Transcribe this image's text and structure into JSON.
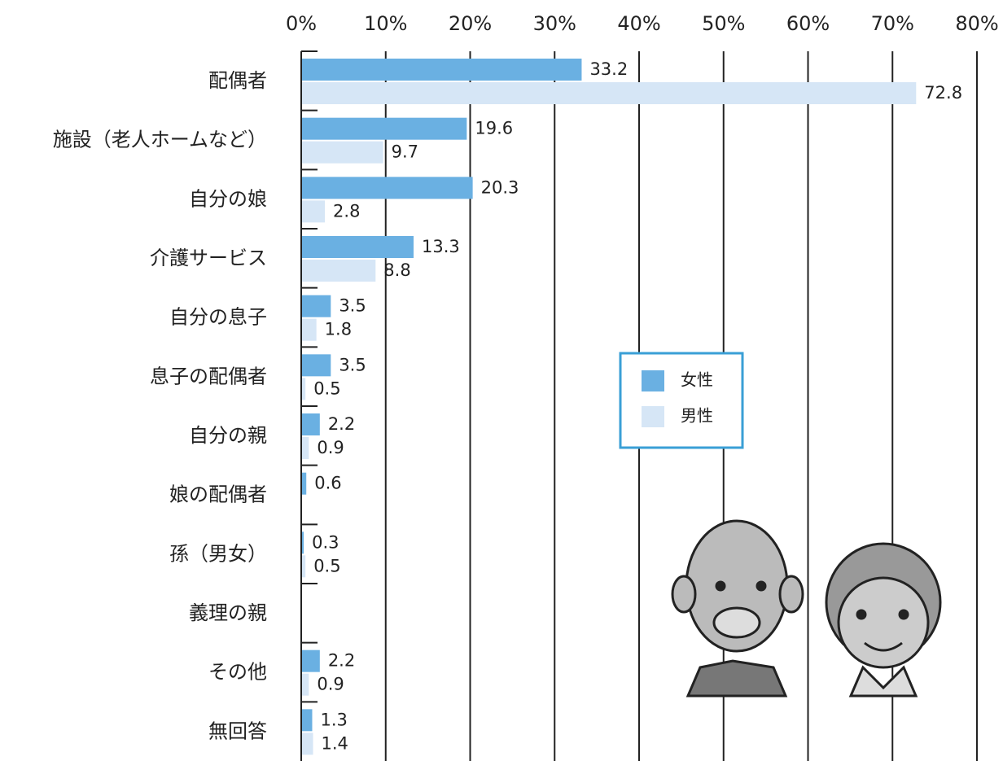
{
  "chart_data": {
    "type": "bar",
    "orientation": "horizontal",
    "categories": [
      "配偶者",
      "施設（老人ホームなど）",
      "自分の娘",
      "介護サービス",
      "自分の息子",
      "息子の配偶者",
      "自分の親",
      "娘の配偶者",
      "孫（男女）",
      "義理の親",
      "その他",
      "無回答"
    ],
    "series": [
      {
        "name": "女性",
        "color": "#6ab0e2",
        "values": [
          33.2,
          19.6,
          20.3,
          13.3,
          3.5,
          3.5,
          2.2,
          0.6,
          0.3,
          null,
          2.2,
          1.3
        ]
      },
      {
        "name": "男性",
        "color": "#d6e6f6",
        "values": [
          72.8,
          9.7,
          2.8,
          8.8,
          1.8,
          0.5,
          0.9,
          null,
          0.5,
          null,
          0.9,
          1.4
        ]
      }
    ],
    "xlim": [
      0,
      80
    ],
    "xticks": [
      {
        "value": 0,
        "label": "0%"
      },
      {
        "value": 10,
        "label": "10%"
      },
      {
        "value": 20,
        "label": "20%"
      },
      {
        "value": 30,
        "label": "30%"
      },
      {
        "value": 40,
        "label": "40%"
      },
      {
        "value": 50,
        "label": "50%"
      },
      {
        "value": 60,
        "label": "60%"
      },
      {
        "value": 70,
        "label": "70%"
      },
      {
        "value": 80,
        "label": "80%"
      }
    ],
    "grid": true,
    "legend": "center"
  }
}
